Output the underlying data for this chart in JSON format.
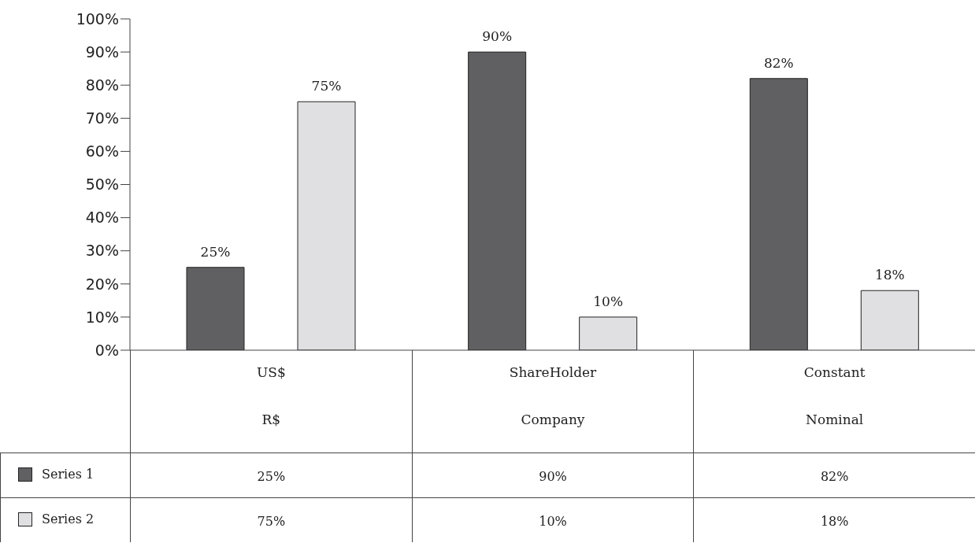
{
  "chart_data": {
    "type": "bar",
    "categories": [
      "US$\nR$",
      "ShareHolder\nCompany",
      "Constant\nNominal"
    ],
    "series": [
      {
        "name": "Series 1",
        "color": "#606062",
        "values": [
          25,
          90,
          82
        ],
        "value_labels": [
          "25%",
          "90%",
          "82%"
        ]
      },
      {
        "name": "Series 2",
        "color": "#e0e0e2",
        "values": [
          75,
          10,
          18
        ],
        "value_labels": [
          "75%",
          "10%",
          "18%"
        ]
      }
    ],
    "ylim": [
      0,
      100
    ],
    "yticks": [
      {
        "value": 0,
        "label": "0%"
      },
      {
        "value": 10,
        "label": "10%"
      },
      {
        "value": 20,
        "label": "20%"
      },
      {
        "value": 30,
        "label": "30%"
      },
      {
        "value": 40,
        "label": "40%"
      },
      {
        "value": 50,
        "label": "50%"
      },
      {
        "value": 60,
        "label": "60%"
      },
      {
        "value": 70,
        "label": "70%"
      },
      {
        "value": 80,
        "label": "80%"
      },
      {
        "value": 90,
        "label": "90%"
      },
      {
        "value": 100,
        "label": "100%"
      }
    ],
    "grid": false,
    "legend": "bottom left"
  }
}
